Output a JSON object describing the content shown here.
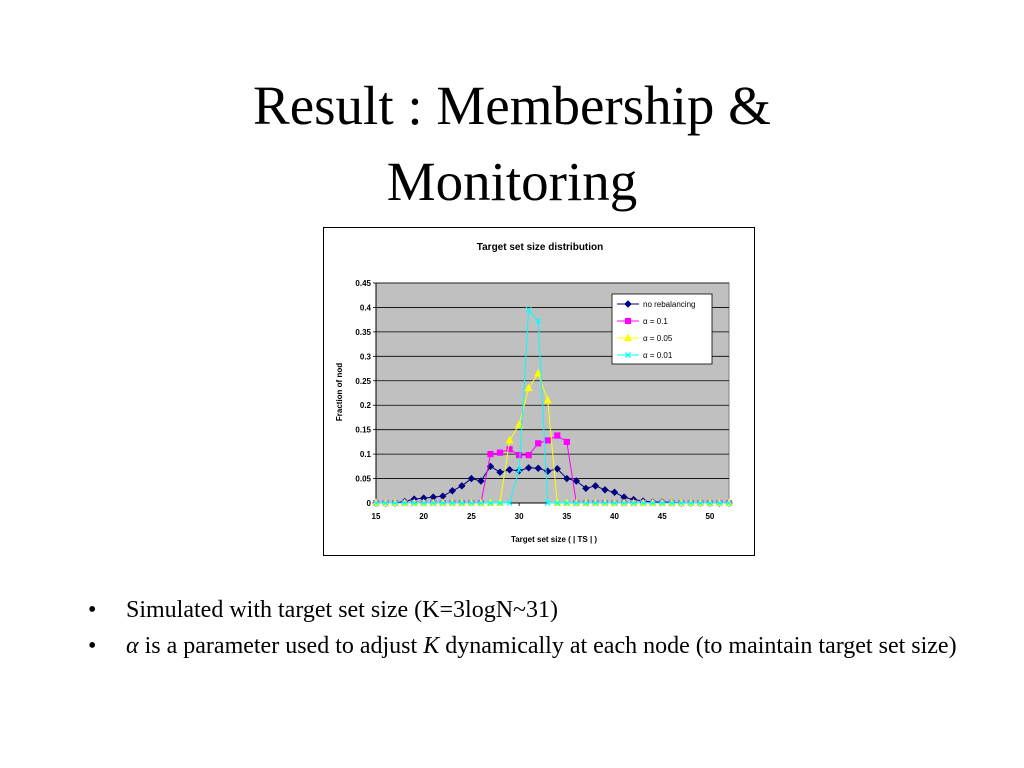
{
  "slide": {
    "title_line1": "Result : Membership &",
    "title_line2": "Monitoring",
    "bullet_glyph": "•",
    "bullets": [
      {
        "text": "Simulated with target set size (K=3logN~31)"
      },
      {
        "alpha": "α",
        "part1": " is a parameter used to adjust ",
        "k": "K",
        "part2": " dynamically at each node (to maintain target set size)"
      }
    ]
  },
  "chart_data": {
    "type": "line",
    "title": "Target set size distribution",
    "xlabel": "Target set size ( | TS | )",
    "ylabel": "Fraction of nod",
    "xlim": [
      15,
      52
    ],
    "ylim": [
      0,
      0.45
    ],
    "x_ticks": [
      15,
      20,
      25,
      30,
      35,
      40,
      45,
      50
    ],
    "y_ticks": [
      0,
      0.05,
      0.1,
      0.15,
      0.2,
      0.25,
      0.3,
      0.35,
      0.4,
      0.45
    ],
    "y_tick_labels": [
      "0",
      "0.05",
      "0.1",
      "0.15",
      "0.2",
      "0.25",
      "0.3",
      "0.35",
      "0.4",
      "0.45"
    ],
    "grid": true,
    "plot_background": "#c0c0c0",
    "legend_position": "top-right",
    "x": [
      15,
      16,
      17,
      18,
      19,
      20,
      21,
      22,
      23,
      24,
      25,
      26,
      27,
      28,
      29,
      30,
      31,
      32,
      33,
      34,
      35,
      36,
      37,
      38,
      39,
      40,
      41,
      42,
      43,
      44,
      45,
      46,
      47,
      48,
      49,
      50,
      51,
      52
    ],
    "series": [
      {
        "name": "no rebalancing",
        "color": "#000080",
        "marker": "diamond",
        "values": [
          0,
          0,
          0,
          0.003,
          0.008,
          0.01,
          0.012,
          0.014,
          0.025,
          0.035,
          0.05,
          0.045,
          0.075,
          0.063,
          0.068,
          0.066,
          0.072,
          0.071,
          0.065,
          0.07,
          0.05,
          0.045,
          0.03,
          0.035,
          0.027,
          0.022,
          0.012,
          0.007,
          0.004,
          0.002,
          0.002,
          0.001,
          0,
          0,
          0,
          0,
          0,
          0
        ]
      },
      {
        "name": "α = 0.1",
        "color": "#ff00ff",
        "marker": "square",
        "values": [
          0,
          0,
          0,
          0,
          0,
          0,
          0,
          0,
          0,
          0,
          0,
          0,
          0.1,
          0.103,
          0.11,
          0.098,
          0.098,
          0.122,
          0.128,
          0.138,
          0.125,
          0,
          0,
          0,
          0,
          0,
          0,
          0,
          0,
          0,
          0,
          0,
          0,
          0,
          0,
          0,
          0,
          0
        ]
      },
      {
        "name": "α = 0.05",
        "color": "#ffff00",
        "marker": "triangle",
        "values": [
          0,
          0,
          0,
          0,
          0,
          0,
          0,
          0,
          0,
          0,
          0,
          0,
          0,
          0,
          0.128,
          0.16,
          0.235,
          0.265,
          0.21,
          0,
          0,
          0,
          0,
          0,
          0,
          0,
          0,
          0,
          0,
          0,
          0,
          0,
          0,
          0,
          0,
          0,
          0,
          0
        ]
      },
      {
        "name": "α = 0.01",
        "color": "#00ffff",
        "marker": "x",
        "values": [
          0,
          0,
          0,
          0,
          0,
          0,
          0,
          0,
          0,
          0,
          0,
          0,
          0,
          0,
          0,
          0.068,
          0.395,
          0.372,
          0,
          0,
          0,
          0,
          0,
          0,
          0,
          0,
          0,
          0,
          0,
          0,
          0,
          0,
          0,
          0,
          0,
          0,
          0,
          0
        ]
      }
    ]
  }
}
